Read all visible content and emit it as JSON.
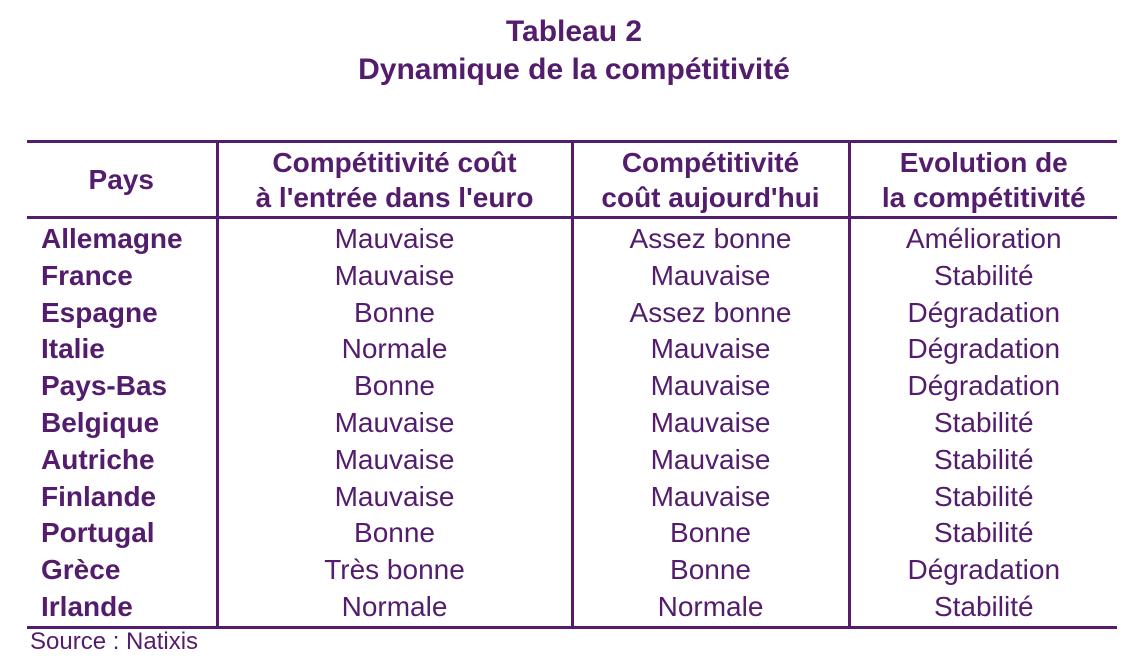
{
  "title": "Tableau 2",
  "subtitle": "Dynamique de la compétitivité",
  "headers": [
    "Pays",
    "Compétitivité coût à l'entrée dans l'euro",
    "Compétitivité coût aujourd'hui",
    "Evolution de la compétitivité"
  ],
  "header_lines": [
    [
      "Pays"
    ],
    [
      "Compétitivité coût",
      "à l'entrée dans l'euro"
    ],
    [
      "Compétitivité",
      "coût aujourd'hui"
    ],
    [
      "Evolution de",
      "la compétitivité"
    ]
  ],
  "rows": [
    [
      "Allemagne",
      "Mauvaise",
      "Assez bonne",
      "Amélioration"
    ],
    [
      "France",
      "Mauvaise",
      "Mauvaise",
      "Stabilité"
    ],
    [
      "Espagne",
      "Bonne",
      "Assez bonne",
      "Dégradation"
    ],
    [
      "Italie",
      "Normale",
      "Mauvaise",
      "Dégradation"
    ],
    [
      "Pays-Bas",
      "Bonne",
      "Mauvaise",
      "Dégradation"
    ],
    [
      "Belgique",
      "Mauvaise",
      "Mauvaise",
      "Stabilité"
    ],
    [
      "Autriche",
      "Mauvaise",
      "Mauvaise",
      "Stabilité"
    ],
    [
      "Finlande",
      "Mauvaise",
      "Mauvaise",
      "Stabilité"
    ],
    [
      "Portugal",
      "Bonne",
      "Bonne",
      "Stabilité"
    ],
    [
      "Grèce",
      "Très bonne",
      "Bonne",
      "Dégradation"
    ],
    [
      "Irlande",
      "Normale",
      "Normale",
      "Stabilité"
    ]
  ],
  "source": "Source : Natixis",
  "colors": {
    "text": "#541c6c",
    "rules": "#541c6c"
  }
}
